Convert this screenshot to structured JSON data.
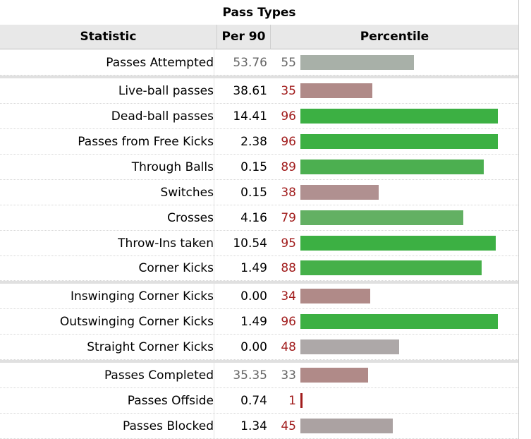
{
  "table": {
    "title": "Pass Types",
    "headers": {
      "statistic": "Statistic",
      "per90": "Per 90",
      "percentile": "Percentile"
    },
    "rows": [
      {
        "stat": "Passes Attempted",
        "per90": "53.76",
        "pct": 55,
        "muted": true,
        "color": "#a8b0a8"
      },
      {
        "stat": "Live-ball passes",
        "per90": "38.61",
        "pct": 35,
        "muted": false,
        "color": "#b08a88"
      },
      {
        "stat": "Dead-ball passes",
        "per90": "14.41",
        "pct": 96,
        "muted": false,
        "color": "#3cb043"
      },
      {
        "stat": "Passes from Free Kicks",
        "per90": "2.38",
        "pct": 96,
        "muted": false,
        "color": "#3cb043"
      },
      {
        "stat": "Through Balls",
        "per90": "0.15",
        "pct": 89,
        "muted": false,
        "color": "#4caf50"
      },
      {
        "stat": "Switches",
        "per90": "0.15",
        "pct": 38,
        "muted": false,
        "color": "#b09090"
      },
      {
        "stat": "Crosses",
        "per90": "4.16",
        "pct": 79,
        "muted": false,
        "color": "#63b063"
      },
      {
        "stat": "Throw-Ins taken",
        "per90": "10.54",
        "pct": 95,
        "muted": false,
        "color": "#3cb043"
      },
      {
        "stat": "Corner Kicks",
        "per90": "1.49",
        "pct": 88,
        "muted": false,
        "color": "#45b049"
      },
      {
        "stat": "Inswinging Corner Kicks",
        "per90": "0.00",
        "pct": 34,
        "muted": false,
        "color": "#b08a88"
      },
      {
        "stat": "Outswinging Corner Kicks",
        "per90": "1.49",
        "pct": 96,
        "muted": false,
        "color": "#3cb043"
      },
      {
        "stat": "Straight Corner Kicks",
        "per90": "0.00",
        "pct": 48,
        "muted": false,
        "color": "#ada8a8"
      },
      {
        "stat": "Passes Completed",
        "per90": "35.35",
        "pct": 33,
        "muted": true,
        "color": "#b08a88"
      },
      {
        "stat": "Passes Offside",
        "per90": "0.74",
        "pct": 1,
        "muted": false,
        "color": "#a11c1c"
      },
      {
        "stat": "Passes Blocked",
        "per90": "1.34",
        "pct": 45,
        "muted": false,
        "color": "#aba2a2"
      }
    ]
  },
  "chart_data": {
    "type": "bar",
    "orientation": "horizontal",
    "title": "Pass Types",
    "categories": [
      "Passes Attempted",
      "Live-ball passes",
      "Dead-ball passes",
      "Passes from Free Kicks",
      "Through Balls",
      "Switches",
      "Crosses",
      "Throw-Ins taken",
      "Corner Kicks",
      "Inswinging Corner Kicks",
      "Outswinging Corner Kicks",
      "Straight Corner Kicks",
      "Passes Completed",
      "Passes Offside",
      "Passes Blocked"
    ],
    "series": [
      {
        "name": "Per 90",
        "values": [
          53.76,
          38.61,
          14.41,
          2.38,
          0.15,
          0.15,
          4.16,
          10.54,
          1.49,
          0.0,
          1.49,
          0.0,
          35.35,
          0.74,
          1.34
        ]
      },
      {
        "name": "Percentile",
        "values": [
          55,
          35,
          96,
          96,
          89,
          38,
          79,
          95,
          88,
          34,
          96,
          48,
          33,
          1,
          45
        ]
      }
    ],
    "xlim": [
      0,
      100
    ]
  }
}
